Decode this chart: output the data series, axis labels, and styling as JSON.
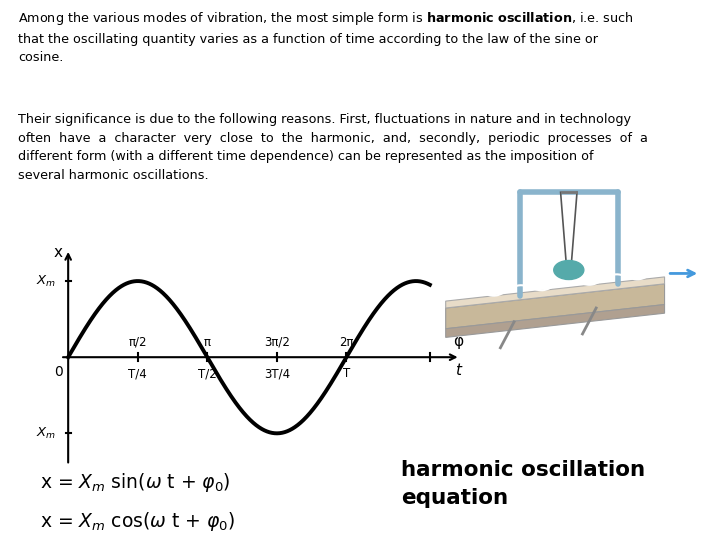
{
  "bg_color": "#ffffff",
  "text_color": "#000000",
  "curve_color": "#000000",
  "axis_color": "#000000",
  "tick_color": "#000000",
  "para1_pre": "Among the various modes of vibration, the most simple form is ",
  "para1_bold": "harmonic oscillation",
  "para1_post": ", i.e. such\nthat the oscillating quantity varies as a function of time according to the law of the sine or\ncosine.",
  "para2": "Their significance is due to the following reasons. First, fluctuations in nature and in technology\noften  have  a  character  very  close  to  the  harmonic,  and,  secondly,  periodic  processes  of  a\ndifferent form (with a different time dependence) can be represented as the imposition of\nseveral harmonic oscillations.",
  "tick_labels_top": [
    "π/2",
    "π",
    "3π/2",
    "2π"
  ],
  "tick_labels_bot": [
    "T/4",
    "T/2",
    "3T/4",
    "T"
  ],
  "phi_label": "φ",
  "t_label": "t",
  "linewidth": 2.8,
  "font_size_text": 9.2,
  "font_size_eq": 13.5,
  "font_size_harmonic": 15.5
}
